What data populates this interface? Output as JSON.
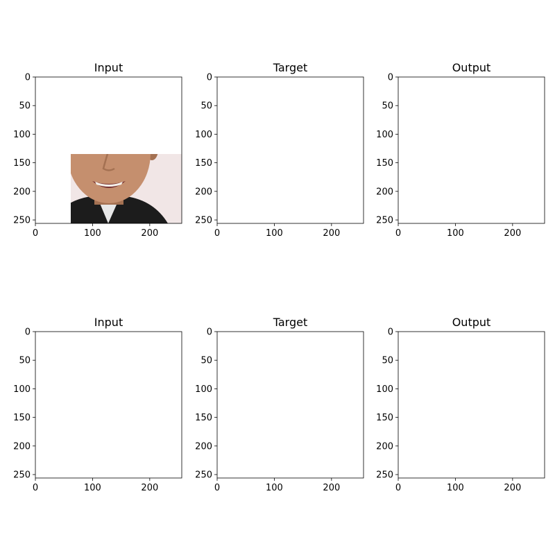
{
  "figure": {
    "panels": [
      {
        "title": "Input",
        "row": 0,
        "col": 0,
        "subject": "face-1",
        "variant": "input",
        "xticks": [
          "0",
          "100",
          "200"
        ],
        "yticks": [
          "0",
          "50",
          "100",
          "150",
          "200",
          "250"
        ]
      },
      {
        "title": "Target",
        "row": 0,
        "col": 1,
        "subject": "face-1",
        "variant": "target",
        "xticks": [
          "0",
          "100",
          "200"
        ],
        "yticks": [
          "0",
          "50",
          "100",
          "150",
          "200",
          "250"
        ]
      },
      {
        "title": "Output",
        "row": 0,
        "col": 2,
        "subject": "face-1",
        "variant": "output",
        "xticks": [
          "0",
          "100",
          "200"
        ],
        "yticks": [
          "0",
          "50",
          "100",
          "150",
          "200",
          "250"
        ]
      },
      {
        "title": "Input",
        "row": 1,
        "col": 0,
        "subject": "face-2",
        "variant": "input",
        "xticks": [
          "0",
          "100",
          "200"
        ],
        "yticks": [
          "0",
          "50",
          "100",
          "150",
          "200",
          "250"
        ]
      },
      {
        "title": "Target",
        "row": 1,
        "col": 1,
        "subject": "face-2",
        "variant": "target",
        "xticks": [
          "0",
          "100",
          "200"
        ],
        "yticks": [
          "0",
          "50",
          "100",
          "150",
          "200",
          "250"
        ]
      },
      {
        "title": "Output",
        "row": 1,
        "col": 2,
        "subject": "face-2",
        "variant": "output",
        "xticks": [
          "0",
          "100",
          "200"
        ],
        "yticks": [
          "0",
          "50",
          "100",
          "150",
          "200",
          "250"
        ]
      }
    ],
    "image_range": [
      0,
      256
    ]
  },
  "subjects": {
    "face-1": {
      "bg": "#f2e6e6",
      "bg_accent": "#e9a9a9",
      "hair": "#1a1210",
      "skin": "#c98e6a",
      "skin_shadow": "#a8704f",
      "clothing": "#1c1c1c",
      "shirt": "#e8e8e8"
    },
    "face-2": {
      "bg": "#a9adb2",
      "bg_accent": "#3c4f86",
      "hair": "#5a4632",
      "skin": "#d9a27e",
      "skin_shadow": "#b47f5e",
      "clothing": "#1e1a18",
      "shirt": "#d8d8d8"
    }
  },
  "variants": {
    "input": {
      "filter": "saturate(0.92)"
    },
    "target": {
      "filter": "saturate(1.0)"
    },
    "output": {
      "filter": "blur(1.2px) saturate(0.85)"
    }
  }
}
